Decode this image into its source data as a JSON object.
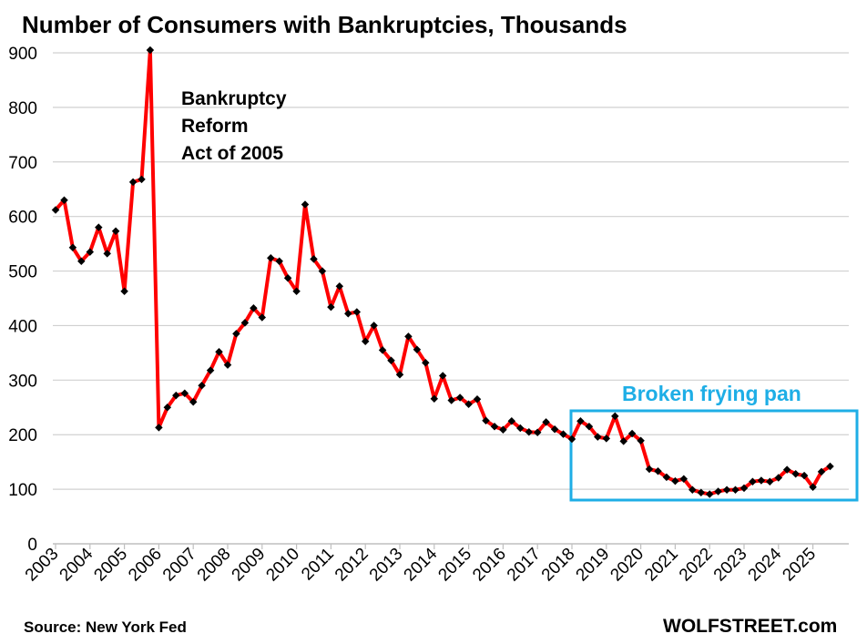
{
  "chart_data": {
    "type": "line",
    "title": "Number  of Consumers with Bankruptcies, Thousands",
    "xlabel": "",
    "ylabel": "",
    "ylim": [
      0,
      900
    ],
    "yticks": [
      "0",
      "100",
      "200",
      "300",
      "400",
      "500",
      "600",
      "700",
      "800",
      "900"
    ],
    "xlim": [
      2003,
      2025.75
    ],
    "xticks": [
      "2003",
      "2004",
      "2005",
      "2006",
      "2007",
      "2008",
      "2009",
      "2010",
      "2011",
      "2012",
      "2013",
      "2014",
      "2015",
      "2016",
      "2017",
      "2018",
      "2019",
      "2020",
      "2021",
      "2022",
      "2023",
      "2024",
      "2025"
    ],
    "grid": "horizontal",
    "line_color": "#ff0000",
    "marker_color": "#000000",
    "box_color": "#1eaee6",
    "series": [
      {
        "values": [
          [
            2003.0,
            612
          ],
          [
            2003.25,
            630
          ],
          [
            2003.5,
            543
          ],
          [
            2003.75,
            518
          ],
          [
            2004.0,
            535
          ],
          [
            2004.25,
            580
          ],
          [
            2004.5,
            532
          ],
          [
            2004.75,
            573
          ],
          [
            2005.0,
            463
          ],
          [
            2005.25,
            663
          ],
          [
            2005.5,
            668
          ],
          [
            2005.75,
            905
          ],
          [
            2006.0,
            213
          ],
          [
            2006.25,
            250
          ],
          [
            2006.5,
            272
          ],
          [
            2006.75,
            276
          ],
          [
            2007.0,
            260
          ],
          [
            2007.25,
            290
          ],
          [
            2007.5,
            318
          ],
          [
            2007.75,
            352
          ],
          [
            2008.0,
            328
          ],
          [
            2008.25,
            385
          ],
          [
            2008.5,
            405
          ],
          [
            2008.75,
            432
          ],
          [
            2009.0,
            415
          ],
          [
            2009.25,
            524
          ],
          [
            2009.5,
            518
          ],
          [
            2009.75,
            487
          ],
          [
            2010.0,
            463
          ],
          [
            2010.25,
            622
          ],
          [
            2010.5,
            522
          ],
          [
            2010.75,
            500
          ],
          [
            2011.0,
            434
          ],
          [
            2011.25,
            472
          ],
          [
            2011.5,
            422
          ],
          [
            2011.75,
            425
          ],
          [
            2012.0,
            371
          ],
          [
            2012.25,
            400
          ],
          [
            2012.5,
            355
          ],
          [
            2012.75,
            336
          ],
          [
            2013.0,
            310
          ],
          [
            2013.25,
            380
          ],
          [
            2013.5,
            356
          ],
          [
            2013.75,
            332
          ],
          [
            2014.0,
            266
          ],
          [
            2014.25,
            308
          ],
          [
            2014.5,
            263
          ],
          [
            2014.75,
            268
          ],
          [
            2015.0,
            256
          ],
          [
            2015.25,
            265
          ],
          [
            2015.5,
            226
          ],
          [
            2015.75,
            215
          ],
          [
            2016.0,
            209
          ],
          [
            2016.25,
            225
          ],
          [
            2016.5,
            212
          ],
          [
            2016.75,
            205
          ],
          [
            2017.0,
            204
          ],
          [
            2017.25,
            223
          ],
          [
            2017.5,
            210
          ],
          [
            2017.75,
            201
          ],
          [
            2018.0,
            192
          ],
          [
            2018.25,
            225
          ],
          [
            2018.5,
            215
          ],
          [
            2018.75,
            196
          ],
          [
            2019.0,
            193
          ],
          [
            2019.25,
            234
          ],
          [
            2019.5,
            188
          ],
          [
            2019.75,
            202
          ],
          [
            2020.0,
            189
          ],
          [
            2020.25,
            137
          ],
          [
            2020.5,
            133
          ],
          [
            2020.75,
            122
          ],
          [
            2021.0,
            115
          ],
          [
            2021.25,
            119
          ],
          [
            2021.5,
            99
          ],
          [
            2021.75,
            94
          ],
          [
            2022.0,
            91
          ],
          [
            2022.25,
            96
          ],
          [
            2022.5,
            99
          ],
          [
            2022.75,
            99
          ],
          [
            2023.0,
            102
          ],
          [
            2023.25,
            114
          ],
          [
            2023.5,
            116
          ],
          [
            2023.75,
            114
          ],
          [
            2024.0,
            121
          ],
          [
            2024.25,
            136
          ],
          [
            2024.5,
            128
          ],
          [
            2024.75,
            125
          ],
          [
            2025.0,
            104
          ],
          [
            2025.25,
            132
          ],
          [
            2025.5,
            142
          ]
        ]
      }
    ],
    "annotations": {
      "reform": [
        "Bankruptcy",
        "Reform",
        "Act of 2005"
      ],
      "box_label": "Broken frying pan"
    }
  },
  "footer": {
    "source": "Source: New York Fed",
    "brand": "WOLFSTREET.com"
  }
}
